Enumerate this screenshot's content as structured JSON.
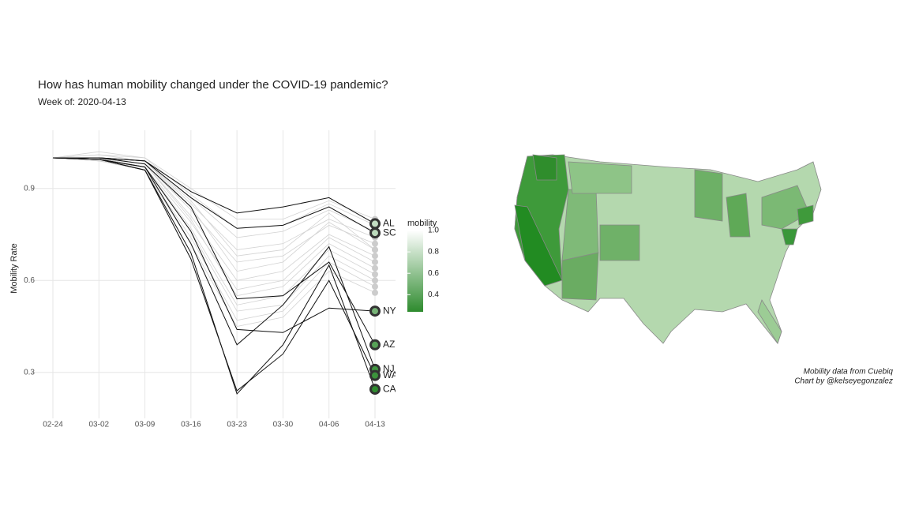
{
  "chart_data": {
    "type": "line",
    "title": "How has human mobility changed under the COVID-19 pandemic?",
    "subtitle": "Week of: 2020-04-13",
    "y_label": "Mobility Rate",
    "categories": [
      "02-24",
      "03-02",
      "03-09",
      "03-16",
      "03-23",
      "03-30",
      "04-06",
      "04-13"
    ],
    "ylim": [
      0.15,
      1.09
    ],
    "yticks": [
      0.3,
      0.6,
      0.9
    ],
    "grid": true,
    "series": [
      {
        "values": [
          1,
          1.01,
          1.0,
          0.9,
          0.8,
          0.8,
          0.86,
          0.8
        ],
        "color": "#d3d3d3"
      },
      {
        "values": [
          1,
          1.0,
          0.99,
          0.87,
          0.74,
          0.76,
          0.83,
          0.76
        ],
        "color": "#d3d3d3"
      },
      {
        "values": [
          1,
          1.0,
          0.99,
          0.85,
          0.7,
          0.72,
          0.8,
          0.74
        ],
        "color": "#d3d3d3"
      },
      {
        "values": [
          1,
          1.0,
          0.98,
          0.83,
          0.66,
          0.68,
          0.78,
          0.72
        ],
        "color": "#d3d3d3"
      },
      {
        "values": [
          1,
          1.01,
          0.99,
          0.84,
          0.63,
          0.66,
          0.79,
          0.7
        ],
        "color": "#d3d3d3"
      },
      {
        "values": [
          1,
          1.0,
          0.98,
          0.81,
          0.6,
          0.63,
          0.75,
          0.68
        ],
        "color": "#d3d3d3"
      },
      {
        "values": [
          1,
          0.99,
          0.97,
          0.79,
          0.57,
          0.6,
          0.74,
          0.66
        ],
        "color": "#d3d3d3"
      },
      {
        "values": [
          1,
          1.0,
          0.98,
          0.8,
          0.55,
          0.58,
          0.72,
          0.64
        ],
        "color": "#d3d3d3"
      },
      {
        "values": [
          1,
          1.0,
          0.97,
          0.77,
          0.52,
          0.55,
          0.7,
          0.62
        ],
        "color": "#d3d3d3"
      },
      {
        "values": [
          1,
          0.99,
          0.97,
          0.76,
          0.5,
          0.52,
          0.68,
          0.6
        ],
        "color": "#d3d3d3"
      },
      {
        "values": [
          1,
          1.0,
          0.96,
          0.74,
          0.47,
          0.5,
          0.66,
          0.58
        ],
        "color": "#d3d3d3"
      },
      {
        "values": [
          1,
          0.99,
          0.96,
          0.72,
          0.45,
          0.48,
          0.63,
          0.56
        ],
        "color": "#d3d3d3"
      },
      {
        "values": [
          1,
          1.02,
          1.0,
          0.88,
          0.77,
          0.78,
          0.85,
          0.78
        ],
        "color": "#d3d3d3"
      },
      {
        "values": [
          1,
          1.0,
          0.99,
          0.86,
          0.68,
          0.7,
          0.82,
          0.7
        ],
        "color": "#d3d3d3"
      },
      {
        "name": "AL",
        "values": [
          1,
          1.0,
          0.99,
          0.89,
          0.82,
          0.84,
          0.87,
          0.785
        ],
        "color": "#111111"
      },
      {
        "name": "SC",
        "values": [
          1,
          1.0,
          0.99,
          0.87,
          0.77,
          0.78,
          0.84,
          0.755
        ],
        "color": "#111111"
      },
      {
        "name": "NY",
        "values": [
          1,
          0.995,
          0.97,
          0.76,
          0.44,
          0.43,
          0.51,
          0.5
        ],
        "color": "#111111"
      },
      {
        "name": "AZ",
        "values": [
          1,
          1.0,
          0.98,
          0.84,
          0.54,
          0.55,
          0.66,
          0.39
        ],
        "color": "#111111"
      },
      {
        "name": "NJ",
        "values": [
          1,
          0.995,
          0.97,
          0.72,
          0.39,
          0.52,
          0.71,
          0.31
        ],
        "color": "#111111"
      },
      {
        "name": "WA",
        "values": [
          1,
          0.995,
          0.96,
          0.67,
          0.24,
          0.36,
          0.6,
          0.29
        ],
        "color": "#111111"
      },
      {
        "name": "CA",
        "values": [
          1,
          0.995,
          0.96,
          0.69,
          0.23,
          0.39,
          0.65,
          0.245
        ],
        "color": "#111111"
      }
    ],
    "colorbar": {
      "title": "mobility",
      "lim": [
        0.24,
        1.0
      ],
      "low": "#2e8b2e",
      "high": "#ffffff",
      "ticks": [
        0.4,
        0.6,
        0.8,
        {
          "value": 1,
          "label": "1.0"
        }
      ]
    },
    "annotations": [
      "Mobility data from Cuebiq",
      "Chart by @kelseyegonzalez"
    ]
  }
}
